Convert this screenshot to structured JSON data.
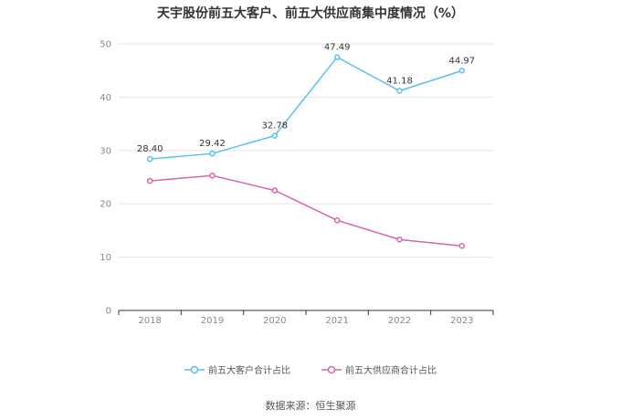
{
  "title": "天宇股份前五大客户、前五大供应商集中度情况（%）",
  "source": "数据来源：恒生聚源",
  "colors": {
    "customers": "#5bc0eb",
    "suppliers": "#d766ac",
    "grid": "#e6e6e6",
    "axis": "#333333"
  },
  "chart_data": {
    "type": "line",
    "title": "天宇股份前五大客户、前五大供应商集中度情况（%）",
    "xlabel": "",
    "ylabel": "",
    "categories": [
      "2018",
      "2019",
      "2020",
      "2021",
      "2022",
      "2023"
    ],
    "ylim": [
      0,
      50
    ],
    "yticks": [
      0,
      10,
      20,
      30,
      40,
      50
    ],
    "grid": true,
    "legend": "bottom",
    "series": [
      {
        "name": "前五大客户合计占比",
        "values": [
          28.4,
          29.42,
          32.78,
          47.49,
          41.18,
          44.97
        ],
        "labels": [
          "28.40",
          "29.42",
          "32.78",
          "47.49",
          "41.18",
          "44.97"
        ],
        "show_labels": true
      },
      {
        "name": "前五大供应商合计占比",
        "values": [
          24.3,
          25.3,
          22.5,
          16.9,
          13.3,
          12.1
        ],
        "show_labels": false
      }
    ]
  }
}
